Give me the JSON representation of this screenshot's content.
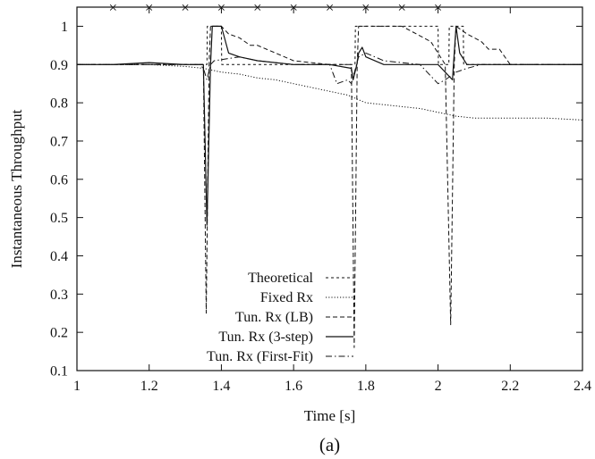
{
  "chart_data": {
    "type": "line",
    "xlabel": "Time [s]",
    "ylabel": "Instantaneous Throughput",
    "caption": "(a)",
    "xlim": [
      1,
      2.4
    ],
    "ylim": [
      0.1,
      1.05
    ],
    "xticks": [
      "1",
      "1.2",
      "1.4",
      "1.6",
      "1.8",
      "2",
      "2.2",
      "2.4"
    ],
    "yticks": [
      "0.1",
      "0.2",
      "0.3",
      "0.4",
      "0.5",
      "0.6",
      "0.7",
      "0.8",
      "0.9",
      "1"
    ],
    "grid": false,
    "legend_position": "bottom-center",
    "event_markers": {
      "symbol": "×",
      "y": 1.05,
      "x": [
        1.1,
        1.2,
        1.3,
        1.4,
        1.5,
        1.6,
        1.7,
        1.8,
        1.9,
        2.0
      ]
    },
    "series": [
      {
        "name": "Theoretical",
        "style": "dashed-short",
        "points": [
          [
            1.0,
            0.9
          ],
          [
            1.36,
            0.9
          ],
          [
            1.361,
            1.0
          ],
          [
            1.4,
            1.0
          ],
          [
            1.401,
            0.9
          ],
          [
            1.77,
            0.9
          ],
          [
            1.771,
            1.0
          ],
          [
            2.0,
            1.0
          ],
          [
            2.001,
            0.9
          ],
          [
            2.03,
            0.9
          ],
          [
            2.031,
            1.0
          ],
          [
            2.07,
            1.0
          ],
          [
            2.071,
            0.9
          ],
          [
            2.4,
            0.9
          ]
        ]
      },
      {
        "name": "Fixed Rx",
        "style": "dotted",
        "points": [
          [
            1.0,
            0.9
          ],
          [
            1.2,
            0.9
          ],
          [
            1.3,
            0.895
          ],
          [
            1.35,
            0.89
          ],
          [
            1.4,
            0.88
          ],
          [
            1.45,
            0.875
          ],
          [
            1.5,
            0.865
          ],
          [
            1.55,
            0.86
          ],
          [
            1.6,
            0.85
          ],
          [
            1.65,
            0.84
          ],
          [
            1.7,
            0.83
          ],
          [
            1.75,
            0.82
          ],
          [
            1.8,
            0.8
          ],
          [
            1.85,
            0.795
          ],
          [
            1.9,
            0.79
          ],
          [
            1.95,
            0.785
          ],
          [
            2.0,
            0.775
          ],
          [
            2.05,
            0.765
          ],
          [
            2.1,
            0.76
          ],
          [
            2.2,
            0.76
          ],
          [
            2.3,
            0.76
          ],
          [
            2.4,
            0.755
          ]
        ]
      },
      {
        "name": "Tun. Rx (LB)",
        "style": "dashed",
        "points": [
          [
            1.0,
            0.9
          ],
          [
            1.35,
            0.9
          ],
          [
            1.358,
            0.25
          ],
          [
            1.366,
            0.9
          ],
          [
            1.37,
            1.0
          ],
          [
            1.4,
            1.0
          ],
          [
            1.42,
            0.98
          ],
          [
            1.45,
            0.97
          ],
          [
            1.48,
            0.95
          ],
          [
            1.5,
            0.95
          ],
          [
            1.55,
            0.93
          ],
          [
            1.6,
            0.91
          ],
          [
            1.7,
            0.9
          ],
          [
            1.76,
            0.9
          ],
          [
            1.768,
            0.16
          ],
          [
            1.776,
            0.9
          ],
          [
            1.78,
            1.0
          ],
          [
            1.9,
            1.0
          ],
          [
            1.94,
            0.98
          ],
          [
            1.98,
            0.96
          ],
          [
            2.02,
            0.9
          ],
          [
            2.035,
            0.22
          ],
          [
            2.045,
            0.9
          ],
          [
            2.05,
            1.0
          ],
          [
            2.08,
            0.98
          ],
          [
            2.12,
            0.96
          ],
          [
            2.14,
            0.94
          ],
          [
            2.17,
            0.94
          ],
          [
            2.2,
            0.9
          ],
          [
            2.4,
            0.9
          ]
        ]
      },
      {
        "name": "Tun. Rx (3-step)",
        "style": "solid",
        "points": [
          [
            1.0,
            0.9
          ],
          [
            1.1,
            0.9
          ],
          [
            1.2,
            0.905
          ],
          [
            1.3,
            0.9
          ],
          [
            1.35,
            0.9
          ],
          [
            1.36,
            0.48
          ],
          [
            1.37,
            0.9
          ],
          [
            1.375,
            1.0
          ],
          [
            1.4,
            1.0
          ],
          [
            1.42,
            0.93
          ],
          [
            1.45,
            0.92
          ],
          [
            1.5,
            0.91
          ],
          [
            1.6,
            0.9
          ],
          [
            1.7,
            0.9
          ],
          [
            1.76,
            0.89
          ],
          [
            1.765,
            0.86
          ],
          [
            1.775,
            0.9
          ],
          [
            1.78,
            0.93
          ],
          [
            1.79,
            0.945
          ],
          [
            1.8,
            0.92
          ],
          [
            1.85,
            0.9
          ],
          [
            2.0,
            0.9
          ],
          [
            2.04,
            0.86
          ],
          [
            2.05,
            1.0
          ],
          [
            2.06,
            0.93
          ],
          [
            2.08,
            0.9
          ],
          [
            2.2,
            0.9
          ],
          [
            2.3,
            0.9
          ],
          [
            2.4,
            0.9
          ]
        ]
      },
      {
        "name": "Tun. Rx (First-Fit)",
        "style": "dash-dot",
        "points": [
          [
            1.0,
            0.9
          ],
          [
            1.34,
            0.9
          ],
          [
            1.35,
            0.89
          ],
          [
            1.36,
            0.86
          ],
          [
            1.37,
            0.9
          ],
          [
            1.38,
            0.91
          ],
          [
            1.45,
            0.92
          ],
          [
            1.5,
            0.91
          ],
          [
            1.6,
            0.9
          ],
          [
            1.7,
            0.9
          ],
          [
            1.72,
            0.85
          ],
          [
            1.75,
            0.86
          ],
          [
            1.76,
            0.85
          ],
          [
            1.78,
            0.92
          ],
          [
            1.8,
            0.93
          ],
          [
            1.85,
            0.91
          ],
          [
            1.95,
            0.9
          ],
          [
            2.0,
            0.85
          ],
          [
            2.02,
            0.86
          ],
          [
            2.05,
            0.88
          ],
          [
            2.08,
            0.89
          ],
          [
            2.12,
            0.9
          ],
          [
            2.2,
            0.9
          ],
          [
            2.4,
            0.9
          ]
        ]
      }
    ]
  }
}
